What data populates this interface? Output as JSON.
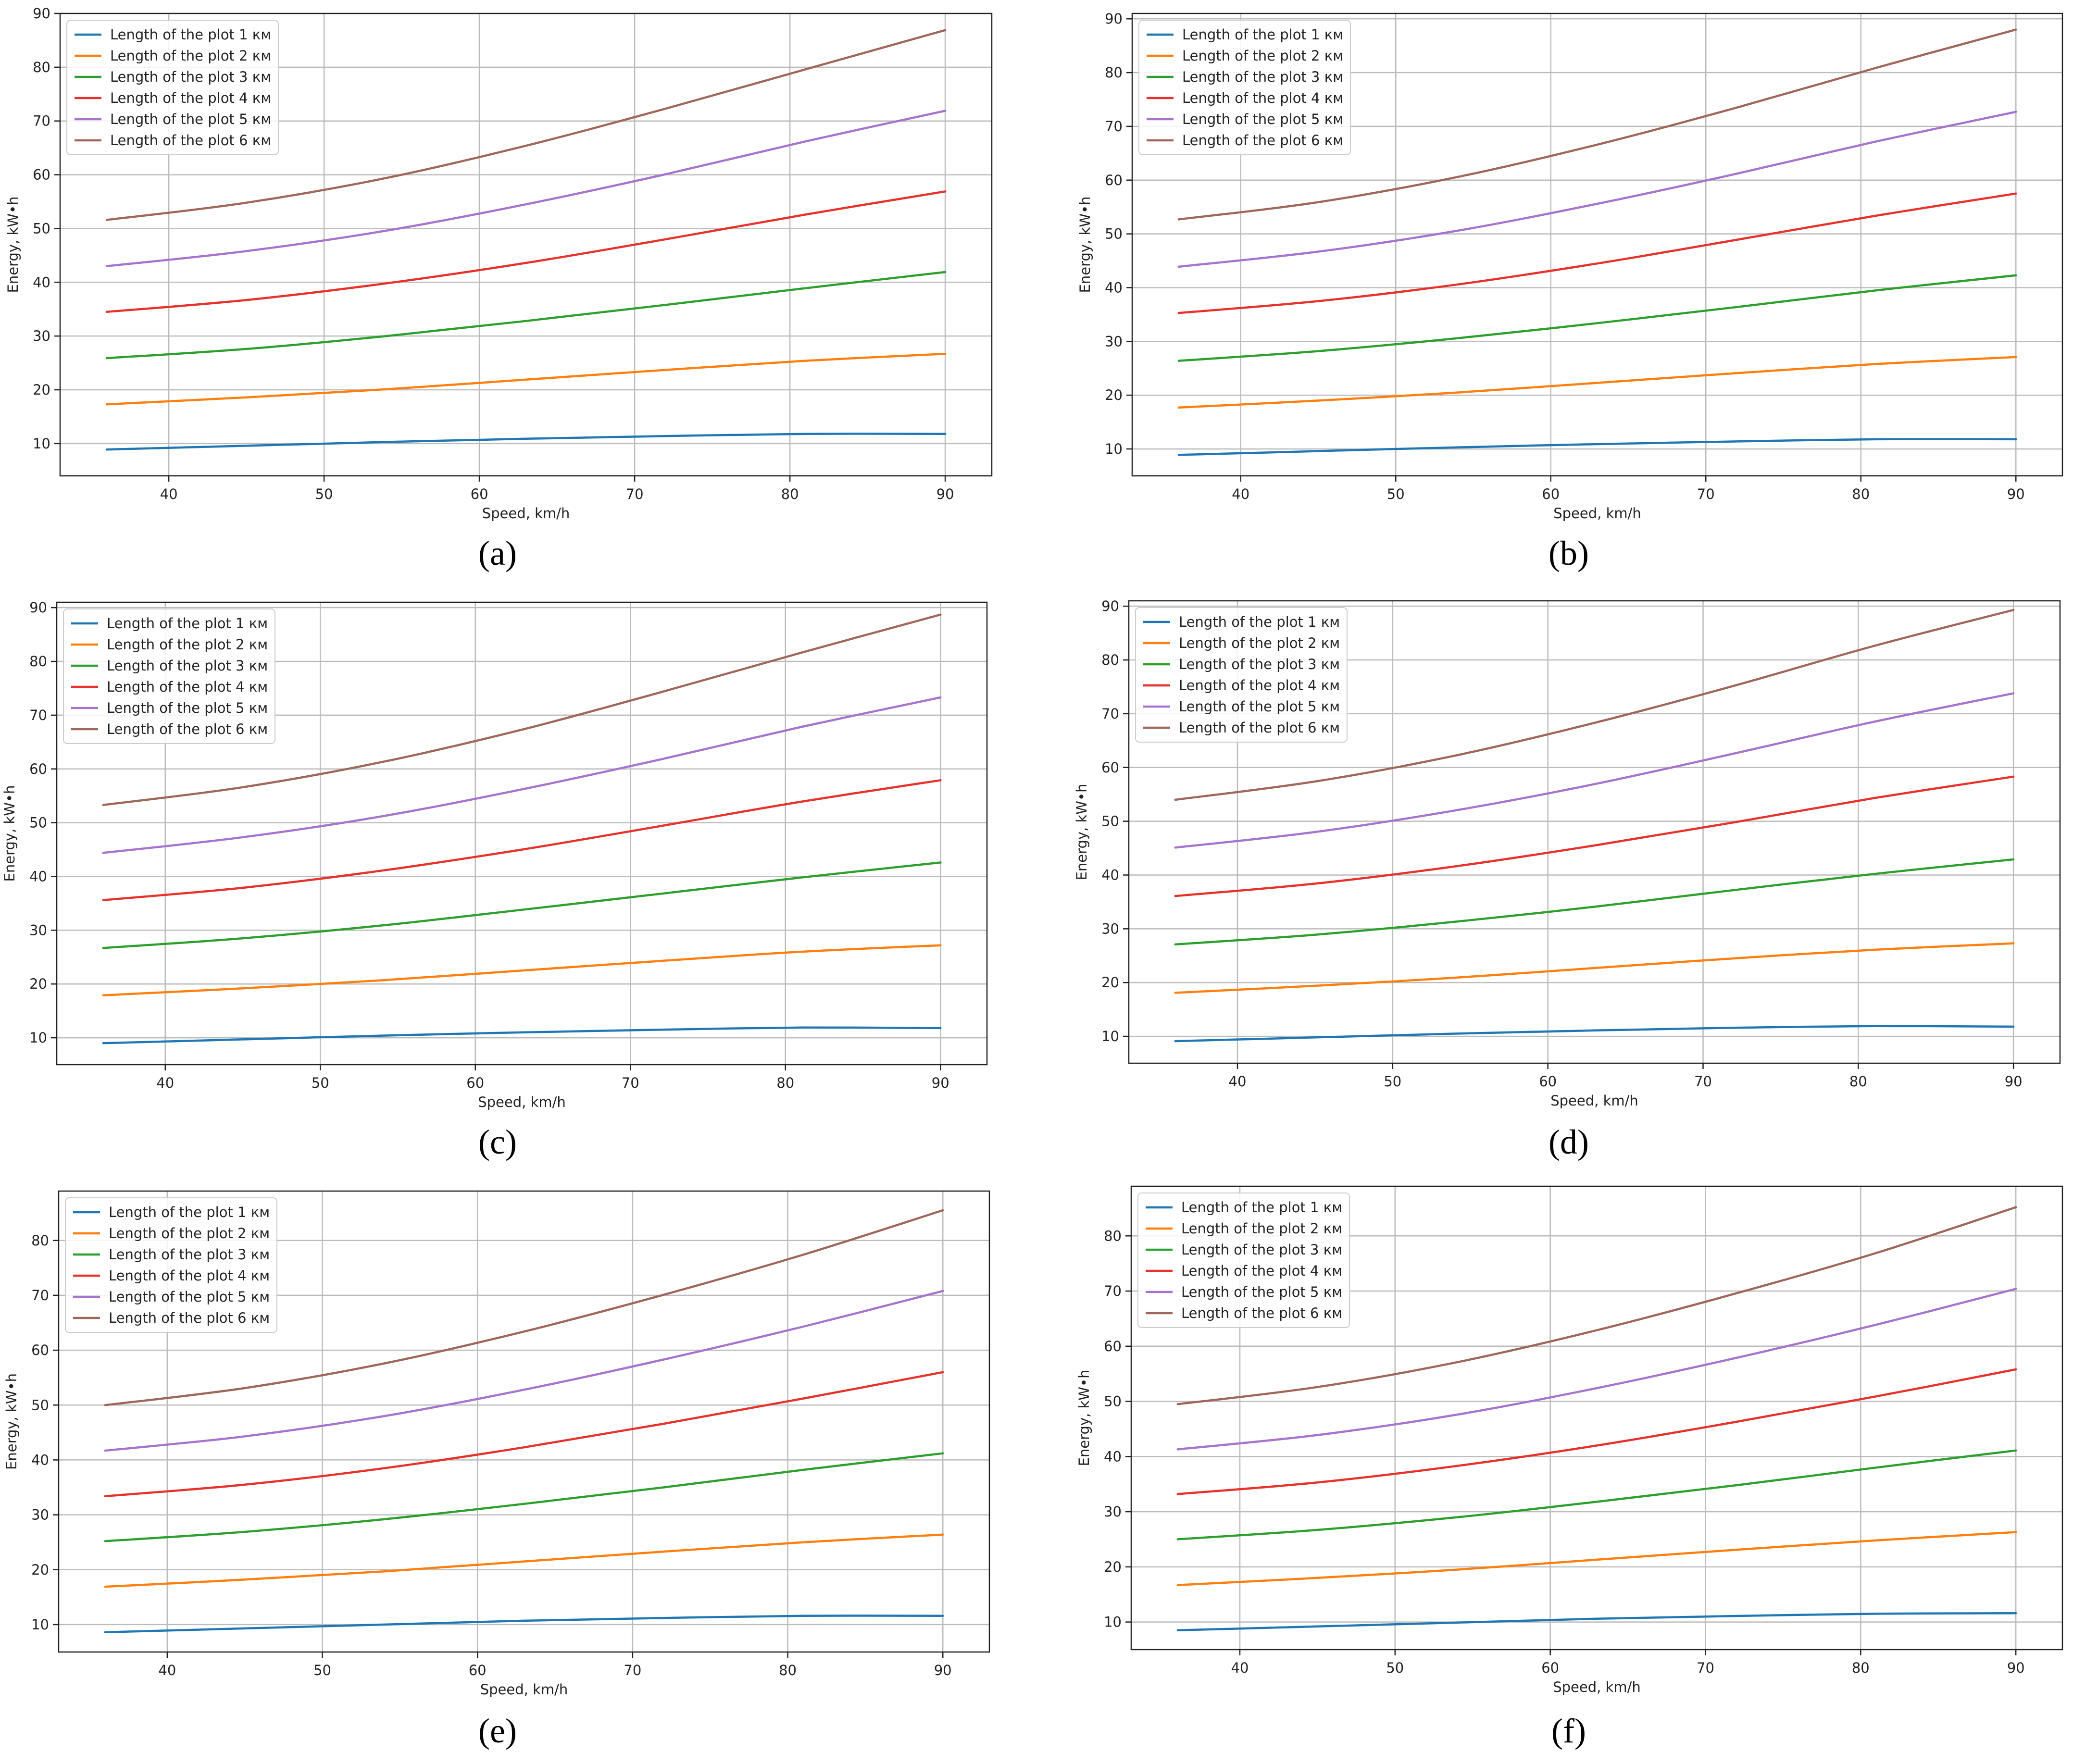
{
  "figure": {
    "panel_labels": [
      "(a)",
      "(b)",
      "(c)",
      "(d)",
      "(e)",
      "(f)"
    ]
  },
  "colors": {
    "series": [
      "#1f77b4",
      "#ff7f0e",
      "#2ca02c",
      "#e8312a",
      "#a673cf",
      "#a0665a"
    ],
    "grid": "#bbbbbb",
    "axis": "#222222"
  },
  "chart_data": [
    {
      "type": "line",
      "panel": "a",
      "xlabel": "Speed, km/h",
      "ylabel": "Energy, kW•h",
      "xlim": [
        33,
        93
      ],
      "ylim": [
        4,
        90
      ],
      "xticks": [
        40,
        50,
        60,
        70,
        80,
        90
      ],
      "yticks": [
        10,
        20,
        30,
        40,
        50,
        60,
        70,
        80,
        90
      ],
      "grid": true,
      "legend_position": "top-left",
      "x": [
        36,
        45,
        54,
        63,
        72,
        81,
        90
      ],
      "series": [
        {
          "name": "Length of the plot 1 км",
          "values": [
            8.9,
            9.6,
            10.3,
            10.9,
            11.4,
            11.8,
            11.8
          ]
        },
        {
          "name": "Length of the plot 2 км",
          "values": [
            17.3,
            18.6,
            20.1,
            21.9,
            23.7,
            25.4,
            26.7
          ]
        },
        {
          "name": "Length of the plot 3 км",
          "values": [
            25.9,
            27.6,
            30.0,
            32.8,
            35.8,
            38.9,
            41.9
          ]
        },
        {
          "name": "Length of the plot 4 км",
          "values": [
            34.5,
            36.7,
            39.8,
            43.6,
            48.0,
            52.6,
            56.9
          ]
        },
        {
          "name": "Length of the plot 5 км",
          "values": [
            43.0,
            45.8,
            49.6,
            54.5,
            60.1,
            66.2,
            71.9
          ]
        },
        {
          "name": "Length of the plot 6 км",
          "values": [
            51.6,
            54.8,
            59.4,
            65.4,
            72.3,
            79.6,
            86.9
          ]
        }
      ]
    },
    {
      "type": "line",
      "panel": "b",
      "xlabel": "Speed, km/h",
      "ylabel": "Energy, kW•h",
      "xlim": [
        33,
        93
      ],
      "ylim": [
        5,
        91
      ],
      "xticks": [
        40,
        50,
        60,
        70,
        80,
        90
      ],
      "yticks": [
        10,
        20,
        30,
        40,
        50,
        60,
        70,
        80,
        90
      ],
      "grid": true,
      "legend_position": "top-left",
      "x": [
        36,
        45,
        54,
        63,
        72,
        81,
        90
      ],
      "series": [
        {
          "name": "Length of the plot 1 км",
          "values": [
            8.9,
            9.6,
            10.3,
            10.9,
            11.4,
            11.8,
            11.8
          ]
        },
        {
          "name": "Length of the plot 2 км",
          "values": [
            17.7,
            19.0,
            20.5,
            22.3,
            24.1,
            25.8,
            27.1
          ]
        },
        {
          "name": "Length of the plot 3 км",
          "values": [
            26.4,
            28.2,
            30.6,
            33.4,
            36.4,
            39.5,
            42.3
          ]
        },
        {
          "name": "Length of the plot 4 км",
          "values": [
            35.3,
            37.5,
            40.6,
            44.5,
            48.9,
            53.4,
            57.5
          ]
        },
        {
          "name": "Length of the plot 5 км",
          "values": [
            43.9,
            46.7,
            50.6,
            55.6,
            61.2,
            67.2,
            72.7
          ]
        },
        {
          "name": "Length of the plot 6 км",
          "values": [
            52.7,
            55.9,
            60.6,
            66.6,
            73.5,
            80.9,
            88.0
          ]
        }
      ]
    },
    {
      "type": "line",
      "panel": "c",
      "xlabel": "Speed, km/h",
      "ylabel": "Energy, kW•h",
      "xlim": [
        33,
        93
      ],
      "ylim": [
        5,
        91
      ],
      "xticks": [
        40,
        50,
        60,
        70,
        80,
        90
      ],
      "yticks": [
        10,
        20,
        30,
        40,
        50,
        60,
        70,
        80,
        90
      ],
      "grid": true,
      "legend_position": "top-left",
      "x": [
        36,
        45,
        54,
        63,
        72,
        81,
        90
      ],
      "series": [
        {
          "name": "Length of the plot 1 км",
          "values": [
            9.0,
            9.7,
            10.4,
            11.0,
            11.5,
            11.9,
            11.8
          ]
        },
        {
          "name": "Length of the plot 2 км",
          "values": [
            17.9,
            19.2,
            20.7,
            22.5,
            24.3,
            26.0,
            27.2
          ]
        },
        {
          "name": "Length of the plot 3 км",
          "values": [
            26.7,
            28.5,
            30.9,
            33.8,
            36.8,
            39.8,
            42.6
          ]
        },
        {
          "name": "Length of the plot 4 км",
          "values": [
            35.6,
            37.9,
            41.1,
            45.0,
            49.4,
            53.9,
            57.9
          ]
        },
        {
          "name": "Length of the plot 5 км",
          "values": [
            44.4,
            47.3,
            51.2,
            56.2,
            61.8,
            67.8,
            73.3
          ]
        },
        {
          "name": "Length of the plot 6 км",
          "values": [
            53.3,
            56.6,
            61.3,
            67.3,
            74.3,
            81.6,
            88.7
          ]
        }
      ]
    },
    {
      "type": "line",
      "panel": "d",
      "xlabel": "Speed, km/h",
      "ylabel": "Energy, kW•h",
      "xlim": [
        33,
        93
      ],
      "ylim": [
        5,
        91
      ],
      "xticks": [
        40,
        50,
        60,
        70,
        80,
        90
      ],
      "yticks": [
        10,
        20,
        30,
        40,
        50,
        60,
        70,
        80,
        90
      ],
      "grid": true,
      "legend_position": "top-left",
      "x": [
        36,
        45,
        54,
        63,
        72,
        81,
        90
      ],
      "series": [
        {
          "name": "Length of the plot 1 км",
          "values": [
            9.1,
            9.8,
            10.5,
            11.1,
            11.6,
            11.9,
            11.8
          ]
        },
        {
          "name": "Length of the plot 2 км",
          "values": [
            18.1,
            19.4,
            20.9,
            22.7,
            24.5,
            26.1,
            27.3
          ]
        },
        {
          "name": "Length of the plot 3 км",
          "values": [
            27.1,
            28.9,
            31.3,
            34.1,
            37.2,
            40.2,
            42.9
          ]
        },
        {
          "name": "Length of the plot 4 км",
          "values": [
            36.1,
            38.4,
            41.6,
            45.5,
            49.8,
            54.3,
            58.3
          ]
        },
        {
          "name": "Length of the plot 5 км",
          "values": [
            45.1,
            48.0,
            52.0,
            56.9,
            62.6,
            68.5,
            73.8
          ]
        },
        {
          "name": "Length of the plot 6 км",
          "values": [
            54.0,
            57.4,
            62.2,
            68.3,
            75.2,
            82.6,
            89.3
          ]
        }
      ]
    },
    {
      "type": "line",
      "panel": "e",
      "xlabel": "Speed, km/h",
      "ylabel": "Energy, kW•h",
      "xlim": [
        33,
        93
      ],
      "ylim": [
        5,
        89
      ],
      "xticks": [
        40,
        50,
        60,
        70,
        80,
        90
      ],
      "yticks": [
        10,
        20,
        30,
        40,
        50,
        60,
        70,
        80
      ],
      "grid": true,
      "legend_position": "top-left",
      "x": [
        36,
        45,
        54,
        63,
        72,
        81,
        90
      ],
      "series": [
        {
          "name": "Length of the plot 1 км",
          "values": [
            8.6,
            9.3,
            10.0,
            10.7,
            11.2,
            11.6,
            11.6
          ]
        },
        {
          "name": "Length of the plot 2 км",
          "values": [
            16.9,
            18.2,
            19.7,
            21.5,
            23.3,
            25.0,
            26.4
          ]
        },
        {
          "name": "Length of the plot 3 км",
          "values": [
            25.2,
            26.9,
            29.2,
            32.0,
            35.0,
            38.2,
            41.2
          ]
        },
        {
          "name": "Length of the plot 4 км",
          "values": [
            33.4,
            35.5,
            38.5,
            42.3,
            46.6,
            51.2,
            56.0
          ]
        },
        {
          "name": "Length of the plot 5 км",
          "values": [
            41.7,
            44.3,
            48.0,
            52.8,
            58.3,
            64.3,
            70.8
          ]
        },
        {
          "name": "Length of the plot 6 км",
          "values": [
            50.0,
            53.1,
            57.6,
            63.4,
            70.1,
            77.4,
            85.5
          ]
        }
      ]
    },
    {
      "type": "line",
      "panel": "f",
      "xlabel": "Speed, km/h",
      "ylabel": "Energy, kW•h",
      "xlim": [
        33,
        93
      ],
      "ylim": [
        5,
        89
      ],
      "xticks": [
        40,
        50,
        60,
        70,
        80,
        90
      ],
      "yticks": [
        10,
        20,
        30,
        40,
        50,
        60,
        70,
        80
      ],
      "grid": true,
      "legend_position": "top-left",
      "x": [
        36,
        45,
        54,
        63,
        72,
        81,
        90
      ],
      "series": [
        {
          "name": "Length of the plot 1 км",
          "values": [
            8.5,
            9.2,
            9.9,
            10.6,
            11.1,
            11.5,
            11.6
          ]
        },
        {
          "name": "Length of the plot 2 км",
          "values": [
            16.7,
            18.0,
            19.5,
            21.3,
            23.1,
            24.8,
            26.3
          ]
        },
        {
          "name": "Length of the plot 3 км",
          "values": [
            25.0,
            26.7,
            29.0,
            31.8,
            34.8,
            38.0,
            41.1
          ]
        },
        {
          "name": "Length of the plot 4 км",
          "values": [
            33.2,
            35.3,
            38.3,
            42.0,
            46.3,
            50.9,
            55.8
          ]
        },
        {
          "name": "Length of the plot 5 км",
          "values": [
            41.3,
            43.9,
            47.6,
            52.4,
            57.9,
            63.9,
            70.4
          ]
        },
        {
          "name": "Length of the plot 6 км",
          "values": [
            49.5,
            52.6,
            57.1,
            62.9,
            69.6,
            76.9,
            85.2
          ]
        }
      ]
    }
  ]
}
